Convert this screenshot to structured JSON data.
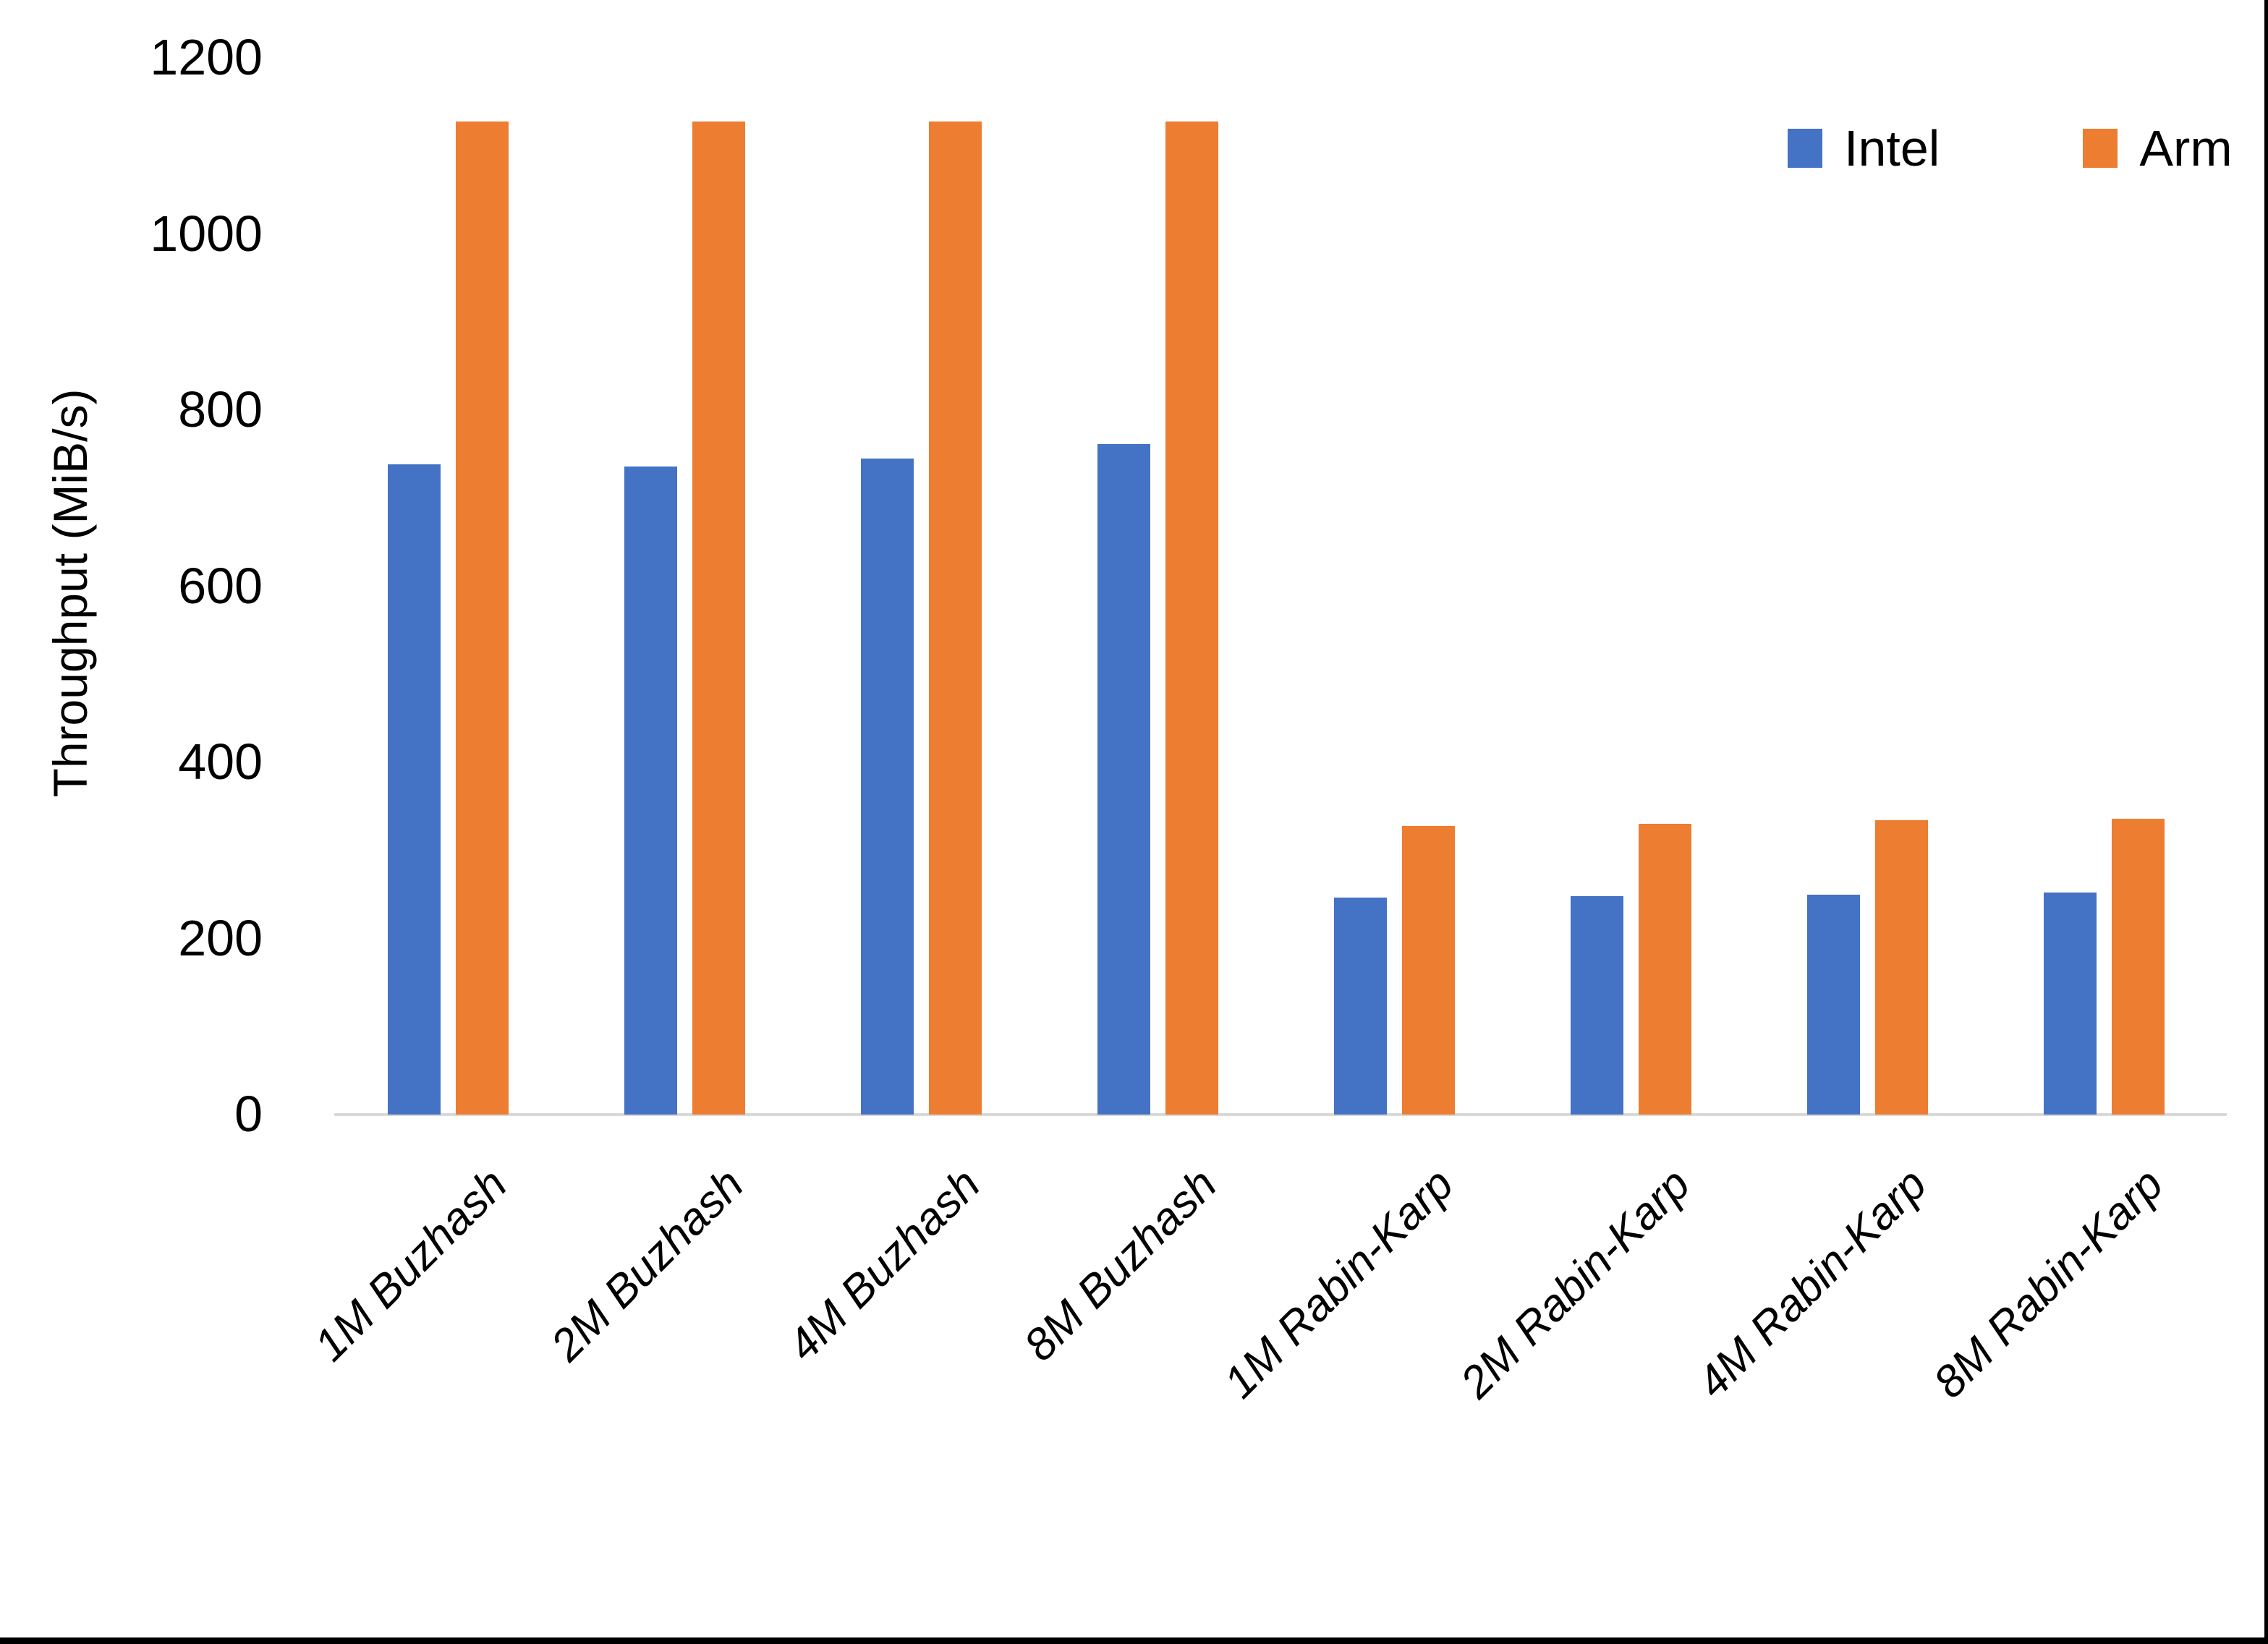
{
  "figure": {
    "background_color": "#FFFFFF",
    "axis_line_color": "#D9D9D9",
    "text_color": "#000000",
    "bottom_edge_color": "#000000",
    "right_edge_color": "#000000"
  },
  "chart_data": {
    "type": "bar",
    "title": "",
    "xlabel": "",
    "ylabel": "Throughput (MiB/s)",
    "ylim": [
      0,
      1200
    ],
    "yticks": [
      "0",
      "200",
      "400",
      "600",
      "800",
      "1000",
      "1200"
    ],
    "ytick_values": [
      0,
      200,
      400,
      600,
      800,
      1000,
      1200
    ],
    "grid": false,
    "legend_position": "top-right",
    "categories": [
      "1M Buzhash",
      "2M Buzhash",
      "4M Buzhash",
      "8M Buzhash",
      "1M Rabin-Karp",
      "2M Rabin-Karp",
      "4M Rabin-Karp",
      "8M Rabin-Karp"
    ],
    "series": [
      {
        "name": "Intel",
        "color": "#4472C4",
        "values": [
          738,
          736,
          745,
          761,
          246,
          248,
          250,
          252
        ]
      },
      {
        "name": "Arm",
        "color": "#ED7D31",
        "values": [
          1128,
          1128,
          1128,
          1128,
          328,
          330,
          334,
          336
        ]
      }
    ]
  }
}
